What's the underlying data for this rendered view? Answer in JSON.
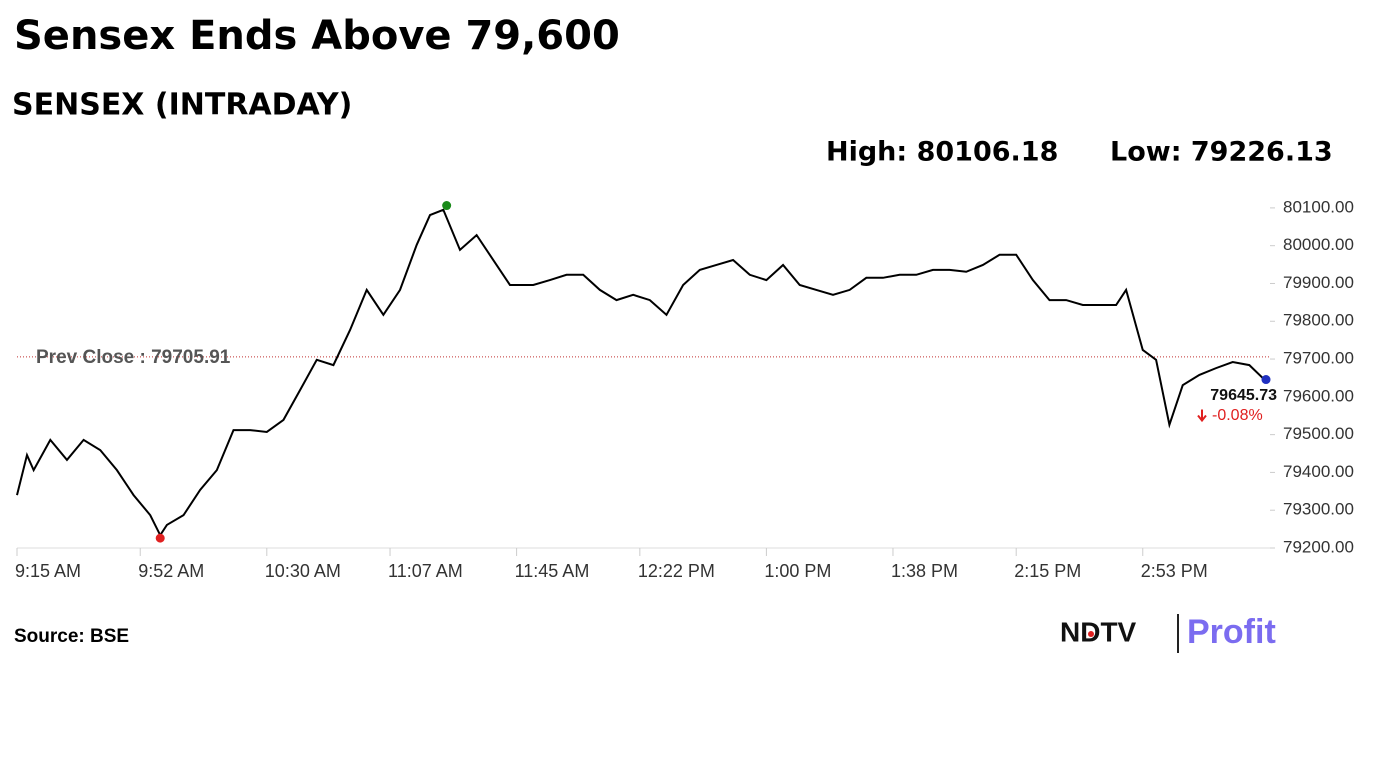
{
  "chart_data": {
    "type": "line",
    "title": "Sensex Ends Above 79,600",
    "subtitle": "SENSEX (INTRADAY)",
    "high_label": "High: 80106.18",
    "low_label": "Low: 79226.13",
    "source": "Source: BSE",
    "brand": "NDTV",
    "brand_sub": "Profit",
    "prev_close": 79705.91,
    "prev_close_label": "Prev Close : 79705.91",
    "last_label": "79645.73",
    "change_label": "-0.08%",
    "high": {
      "x": 684,
      "value": 80106.18
    },
    "low": {
      "x": 598,
      "value": 79226.13
    },
    "x": [
      555,
      558,
      560,
      565,
      570,
      575,
      580,
      585,
      590,
      595,
      598,
      600,
      605,
      610,
      615,
      620,
      625,
      630,
      635,
      640,
      645,
      650,
      655,
      660,
      665,
      670,
      675,
      679,
      683,
      688,
      693,
      698,
      698,
      703,
      710,
      715,
      720,
      725,
      730,
      735,
      740,
      745,
      750,
      755,
      760,
      765,
      770,
      775,
      780,
      785,
      790,
      795,
      800,
      805,
      810,
      815,
      820,
      825,
      830,
      835,
      840,
      845,
      850,
      855,
      860,
      865,
      870,
      875,
      880,
      885,
      888,
      893,
      897,
      901,
      905,
      910,
      915,
      920,
      925,
      929,
      930
    ],
    "series": [
      {
        "name": "SENSEX",
        "color": "#000000",
        "values": [
          79340,
          79446,
          79406,
          79486,
          79433,
          79486,
          79459,
          79406,
          79340,
          79287,
          79234,
          79261,
          79287,
          79354,
          79406,
          79512,
          79512,
          79507,
          79539,
          79618,
          79698,
          79684,
          79777,
          79883,
          79817,
          79883,
          80002,
          80081,
          80095,
          79989,
          80028,
          79962,
          79962,
          79896,
          79896,
          79909,
          79923,
          79923,
          79883,
          79856,
          79870,
          79856,
          79817,
          79896,
          79936,
          79949,
          79962,
          79923,
          79909,
          79949,
          79896,
          79883,
          79870,
          79883,
          79915,
          79915,
          79923,
          79923,
          79936,
          79936,
          79931,
          79949,
          79976,
          79976,
          79909,
          79856,
          79856,
          79843,
          79843,
          79843,
          79883,
          79724,
          79698,
          79526,
          79631,
          79658,
          79676,
          79692,
          79684,
          79650,
          79645.73
        ]
      }
    ],
    "xlim": [
      555,
      930
    ],
    "xticks": [
      {
        "value": 555,
        "label": "9:15 AM"
      },
      {
        "value": 592,
        "label": "9:52 AM"
      },
      {
        "value": 630,
        "label": "10:30 AM"
      },
      {
        "value": 667,
        "label": "11:07 AM"
      },
      {
        "value": 705,
        "label": "11:45 AM"
      },
      {
        "value": 742,
        "label": "12:22 PM"
      },
      {
        "value": 780,
        "label": "1:00 PM"
      },
      {
        "value": 818,
        "label": "1:38 PM"
      },
      {
        "value": 855,
        "label": "2:15 PM"
      },
      {
        "value": 893,
        "label": "2:53 PM"
      }
    ],
    "ylim": [
      79200,
      80150
    ],
    "yticks": [
      {
        "value": 79200,
        "label": "79200.00"
      },
      {
        "value": 79300,
        "label": "79300.00"
      },
      {
        "value": 79400,
        "label": "79400.00"
      },
      {
        "value": 79500,
        "label": "79500.00"
      },
      {
        "value": 79600,
        "label": "79600.00"
      },
      {
        "value": 79700,
        "label": "79700.00"
      },
      {
        "value": 79800,
        "label": "79800.00"
      },
      {
        "value": 79900,
        "label": "79900.00"
      },
      {
        "value": 80000,
        "label": "80000.00"
      },
      {
        "value": 80100,
        "label": "80100.00"
      }
    ],
    "high_color": "#1a8a1a",
    "low_color": "#e02020",
    "last_color": "#2030c0"
  }
}
